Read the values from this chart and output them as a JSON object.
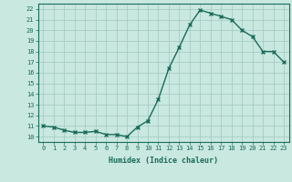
{
  "x": [
    0,
    1,
    2,
    3,
    4,
    5,
    6,
    7,
    8,
    9,
    10,
    11,
    12,
    13,
    14,
    15,
    16,
    17,
    18,
    19,
    20,
    21,
    22,
    23
  ],
  "y": [
    11,
    10.9,
    10.6,
    10.4,
    10.4,
    10.5,
    10.2,
    10.2,
    10.0,
    10.9,
    11.5,
    13.5,
    16.4,
    18.4,
    20.5,
    21.9,
    21.6,
    21.3,
    21.0,
    20.0,
    19.4,
    18.0,
    18.0,
    17.0
  ],
  "line_color": "#1a6b5a",
  "bg_color": "#c8e8e0",
  "grid_color": "#a0c8c0",
  "ylabel_ticks": [
    10,
    11,
    12,
    13,
    14,
    15,
    16,
    17,
    18,
    19,
    20,
    21,
    22
  ],
  "xlabel_ticks": [
    0,
    1,
    2,
    3,
    4,
    5,
    6,
    7,
    8,
    9,
    10,
    11,
    12,
    13,
    14,
    15,
    16,
    17,
    18,
    19,
    20,
    21,
    22,
    23
  ],
  "xlabel": "Humidex (Indice chaleur)",
  "ylim": [
    9.5,
    22.5
  ],
  "xlim": [
    -0.5,
    23.5
  ]
}
